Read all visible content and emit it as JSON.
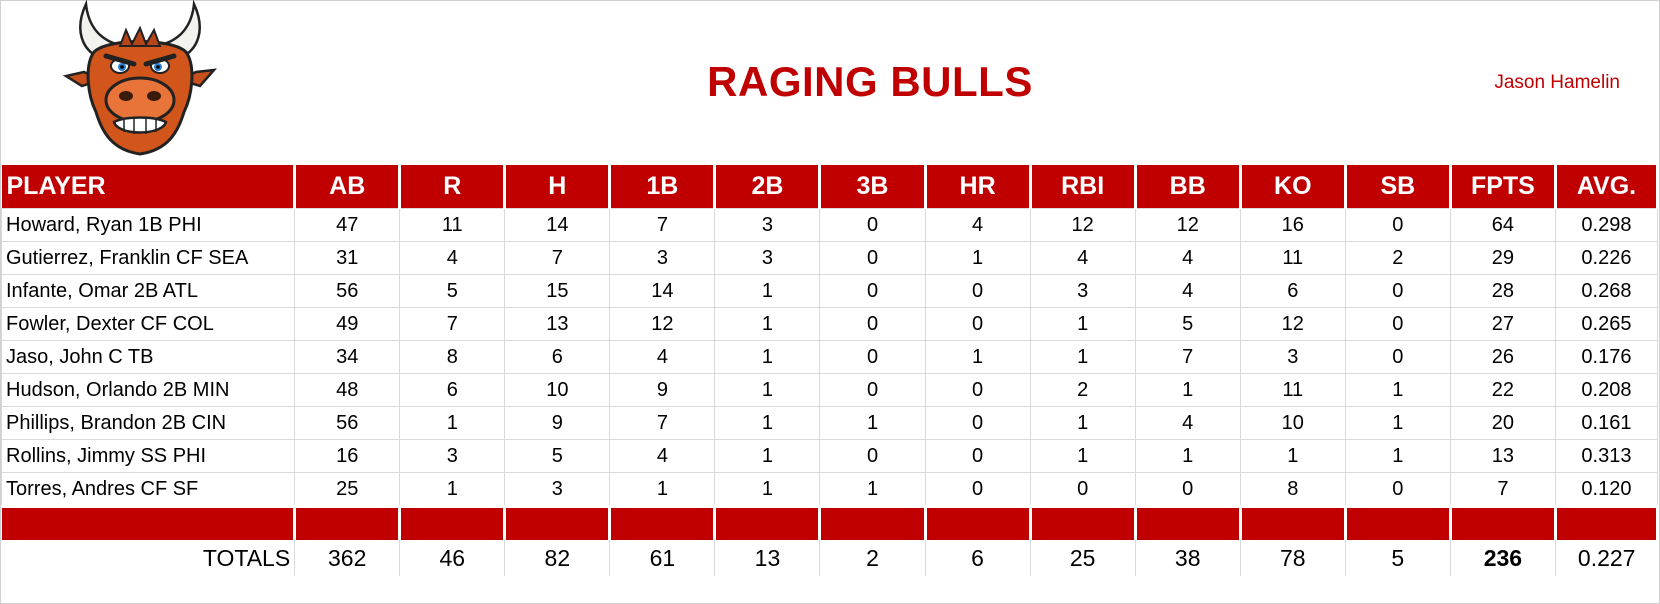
{
  "header": {
    "title": "RAGING BULLS",
    "owner": "Jason Hamelin",
    "logo_icon": "angry-bull-mascot-icon"
  },
  "table": {
    "columns": [
      "PLAYER",
      "AB",
      "R",
      "H",
      "1B",
      "2B",
      "3B",
      "HR",
      "RBI",
      "BB",
      "KO",
      "SB",
      "FPTS",
      "AVG."
    ],
    "rows": [
      [
        "Howard, Ryan 1B PHI",
        "47",
        "11",
        "14",
        "7",
        "3",
        "0",
        "4",
        "12",
        "12",
        "16",
        "0",
        "64",
        "0.298"
      ],
      [
        "Gutierrez, Franklin CF SEA",
        "31",
        "4",
        "7",
        "3",
        "3",
        "0",
        "1",
        "4",
        "4",
        "11",
        "2",
        "29",
        "0.226"
      ],
      [
        "Infante, Omar 2B ATL",
        "56",
        "5",
        "15",
        "14",
        "1",
        "0",
        "0",
        "3",
        "4",
        "6",
        "0",
        "28",
        "0.268"
      ],
      [
        "Fowler, Dexter CF COL",
        "49",
        "7",
        "13",
        "12",
        "1",
        "0",
        "0",
        "1",
        "5",
        "12",
        "0",
        "27",
        "0.265"
      ],
      [
        "Jaso, John C TB",
        "34",
        "8",
        "6",
        "4",
        "1",
        "0",
        "1",
        "1",
        "7",
        "3",
        "0",
        "26",
        "0.176"
      ],
      [
        "Hudson, Orlando 2B MIN",
        "48",
        "6",
        "10",
        "9",
        "1",
        "0",
        "0",
        "2",
        "1",
        "11",
        "1",
        "22",
        "0.208"
      ],
      [
        "Phillips, Brandon 2B CIN",
        "56",
        "1",
        "9",
        "7",
        "1",
        "1",
        "0",
        "1",
        "4",
        "10",
        "1",
        "20",
        "0.161"
      ],
      [
        "Rollins, Jimmy SS PHI",
        "16",
        "3",
        "5",
        "4",
        "1",
        "0",
        "0",
        "1",
        "1",
        "1",
        "1",
        "13",
        "0.313"
      ],
      [
        "Torres, Andres CF SF",
        "25",
        "1",
        "3",
        "1",
        "1",
        "1",
        "0",
        "0",
        "0",
        "8",
        "0",
        "7",
        "0.120"
      ]
    ],
    "totals": [
      "TOTALS",
      "362",
      "46",
      "82",
      "61",
      "13",
      "2",
      "6",
      "25",
      "38",
      "78",
      "5",
      "236",
      "0.227"
    ]
  },
  "colors": {
    "accent": "#c00000",
    "header_text": "#ffffff",
    "grid": "#d9d9d9"
  }
}
